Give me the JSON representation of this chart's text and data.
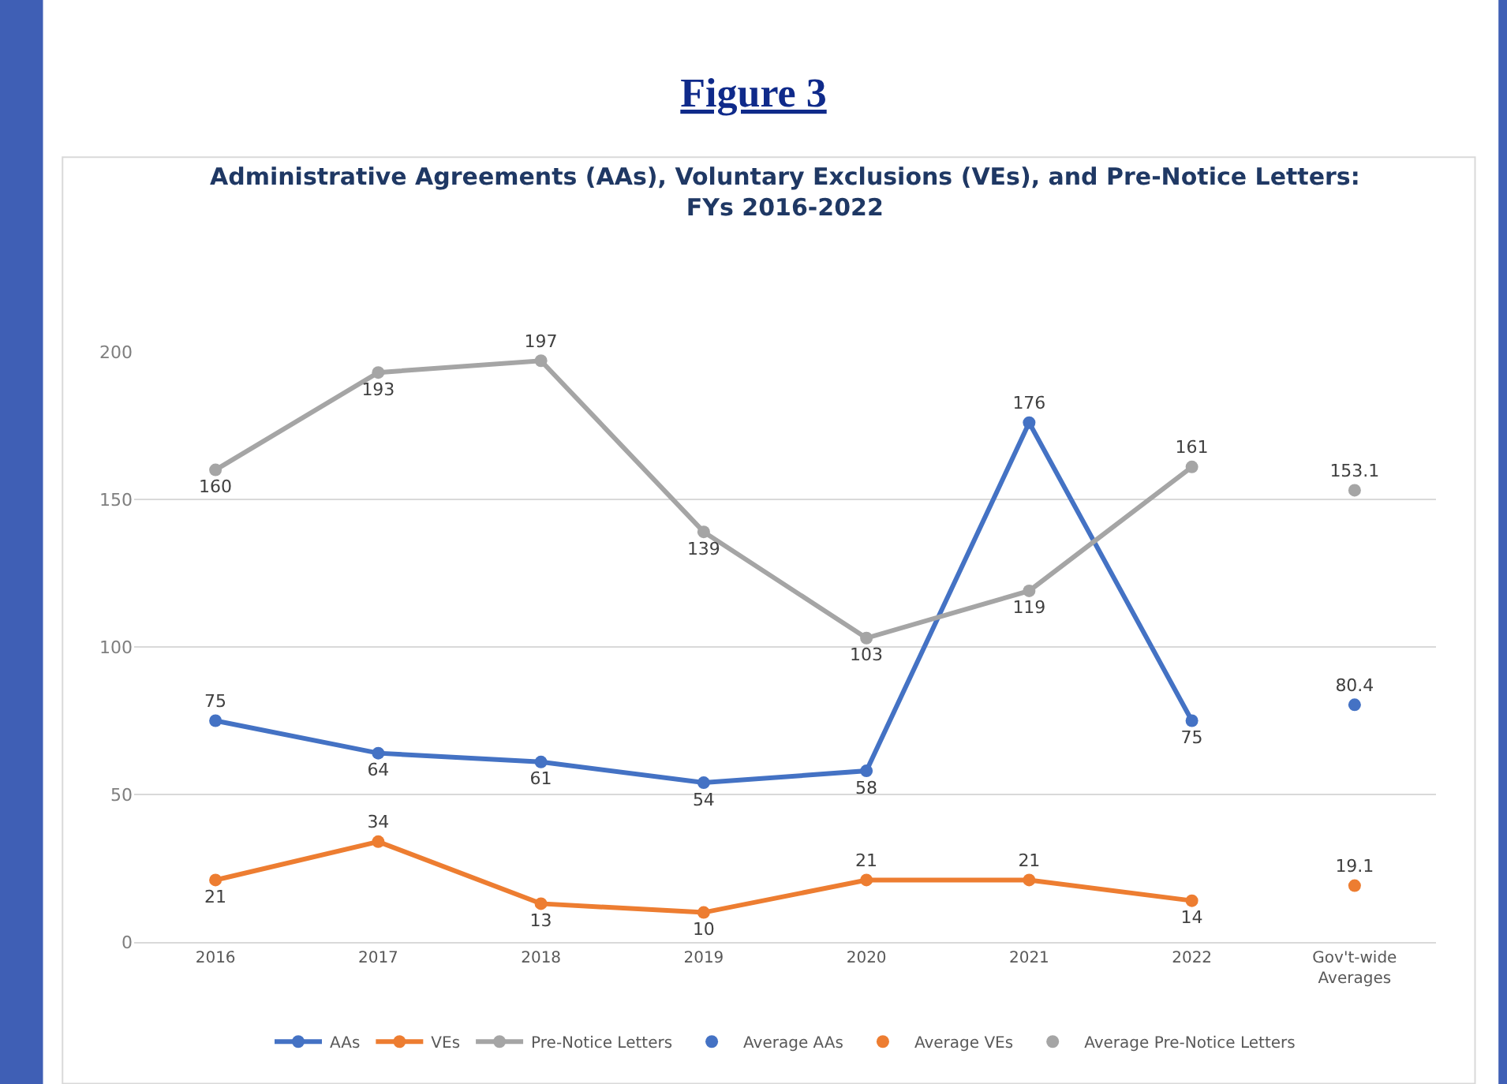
{
  "chart_data": {
    "type": "line",
    "title": "Figure 3",
    "subtitle": "Administrative Agreements (AAs), Voluntary Exclusions (VEs), and Pre-Notice Letters:\nFYs 2016-2022",
    "categories": [
      "2016",
      "2017",
      "2018",
      "2019",
      "2020",
      "2021",
      "2022",
      "Gov't-wide\nAverages"
    ],
    "series": [
      {
        "name": "AAs",
        "color": "#4472c4",
        "values": [
          75,
          64,
          61,
          54,
          58,
          176,
          75,
          null
        ]
      },
      {
        "name": "VEs",
        "color": "#ed7d31",
        "values": [
          21,
          34,
          13,
          10,
          21,
          21,
          14,
          null
        ]
      },
      {
        "name": "Pre-Notice Letters",
        "color": "#a5a5a5",
        "values": [
          160,
          193,
          197,
          139,
          103,
          119,
          161,
          null
        ]
      },
      {
        "name": "Average AAs",
        "type": "scatter",
        "color": "#4472c4",
        "values": [
          null,
          null,
          null,
          null,
          null,
          null,
          null,
          80.4
        ]
      },
      {
        "name": "Average VEs",
        "type": "scatter",
        "color": "#ed7d31",
        "values": [
          null,
          null,
          null,
          null,
          null,
          null,
          null,
          19.1
        ]
      },
      {
        "name": "Average Pre-Notice Letters",
        "type": "scatter",
        "color": "#a5a5a5",
        "values": [
          null,
          null,
          null,
          null,
          null,
          null,
          null,
          153.1
        ]
      }
    ],
    "ylim": [
      0,
      200
    ],
    "yticks": [
      0,
      50,
      100,
      150,
      200
    ],
    "grid": "y",
    "legend": "bottom",
    "marker": "circle",
    "line_style": "solid",
    "data_labels": true
  }
}
